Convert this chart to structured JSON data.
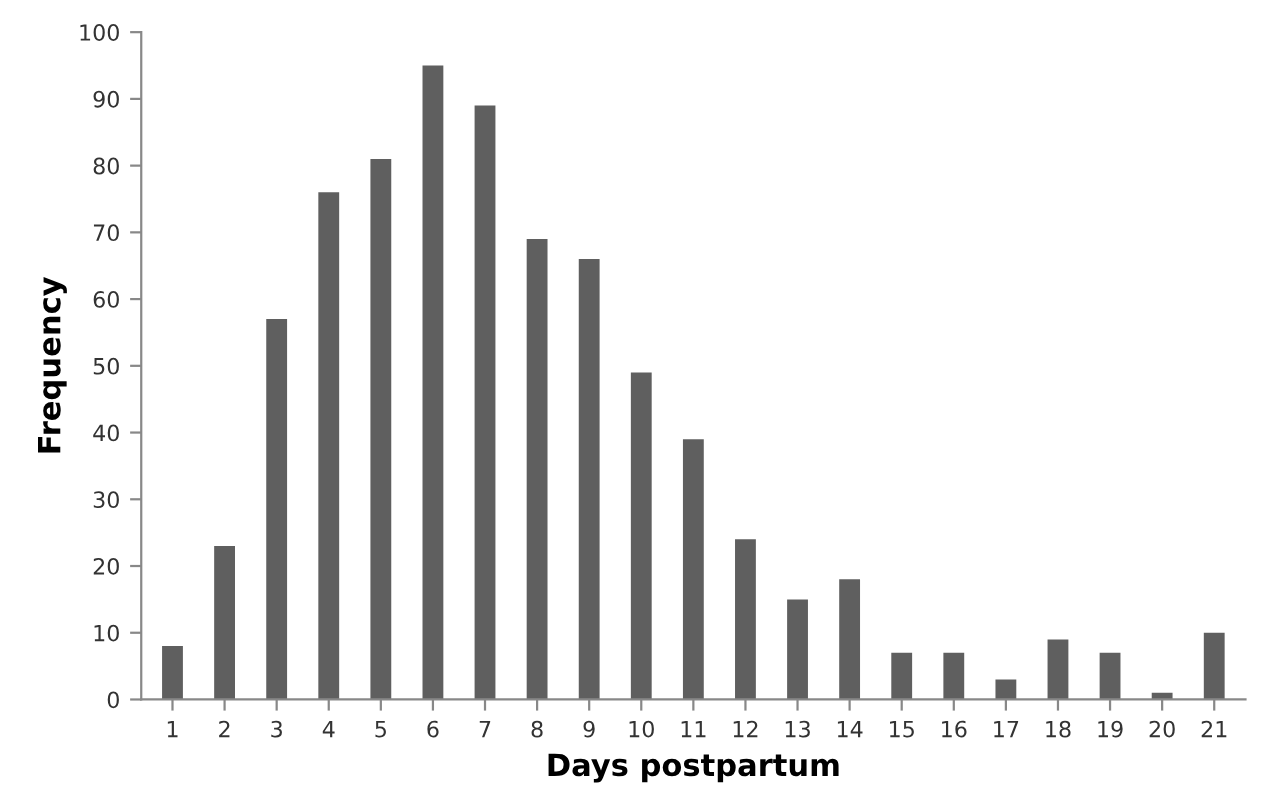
{
  "chart_data": {
    "type": "bar",
    "xlabel": "Days postpartum",
    "ylabel": "Frequency",
    "categories": [
      "1",
      "2",
      "3",
      "4",
      "5",
      "6",
      "7",
      "8",
      "9",
      "10",
      "11",
      "12",
      "13",
      "14",
      "15",
      "16",
      "17",
      "18",
      "19",
      "20",
      "21"
    ],
    "values": [
      8,
      23,
      57,
      76,
      81,
      95,
      89,
      69,
      66,
      49,
      39,
      24,
      15,
      18,
      7,
      7,
      3,
      9,
      7,
      1,
      10
    ],
    "color": "#5f5f5f",
    "ylim": [
      0,
      100
    ],
    "yticks": [
      0,
      10,
      20,
      30,
      40,
      50,
      60,
      70,
      80,
      90,
      100
    ],
    "grid": false
  }
}
